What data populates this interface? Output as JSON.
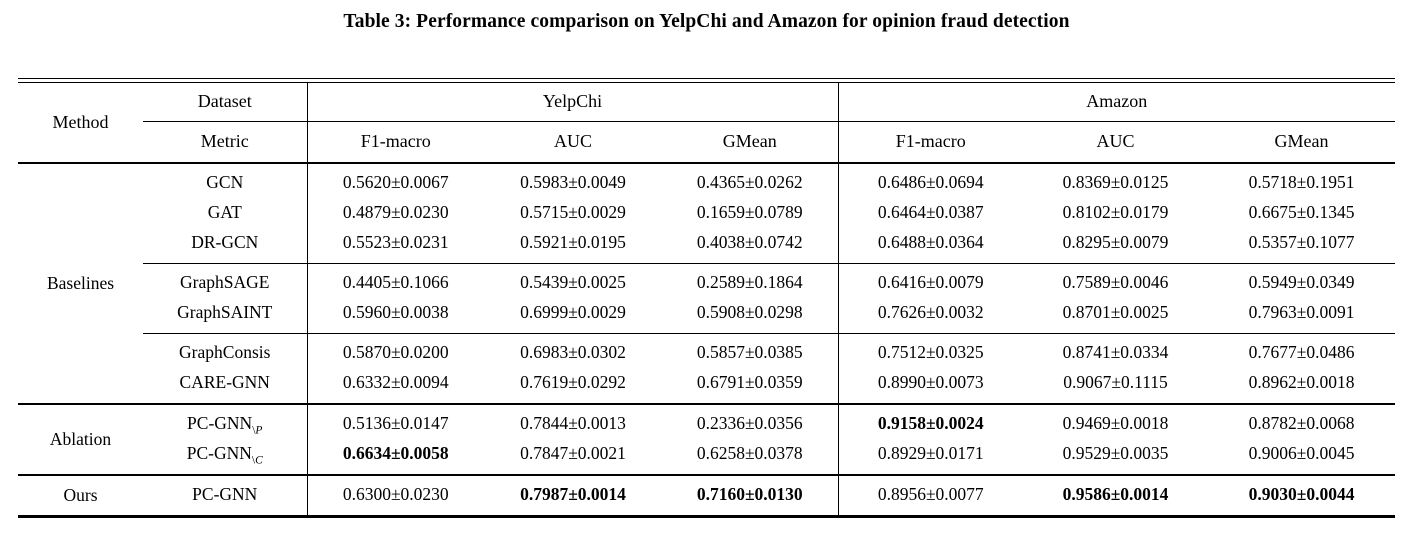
{
  "title": "Table 3: Performance comparison on YelpChi and Amazon for opinion fraud detection",
  "table": {
    "header": {
      "method": "Method",
      "dataset_label": "Dataset",
      "metric_label": "Metric",
      "datasets": [
        "YelpChi",
        "Amazon"
      ],
      "metrics": [
        "F1-macro",
        "AUC",
        "GMean"
      ]
    },
    "groups": [
      {
        "label": "Baselines",
        "blocks": [
          [
            {
              "method": "GCN",
              "sub": "",
              "values": [
                "0.5620±0.0067",
                "0.5983±0.0049",
                "0.4365±0.0262",
                "0.6486±0.0694",
                "0.8369±0.0125",
                "0.5718±0.1951"
              ],
              "bold": []
            },
            {
              "method": "GAT",
              "sub": "",
              "values": [
                "0.4879±0.0230",
                "0.5715±0.0029",
                "0.1659±0.0789",
                "0.6464±0.0387",
                "0.8102±0.0179",
                "0.6675±0.1345"
              ],
              "bold": []
            },
            {
              "method": "DR-GCN",
              "sub": "",
              "values": [
                "0.5523±0.0231",
                "0.5921±0.0195",
                "0.4038±0.0742",
                "0.6488±0.0364",
                "0.8295±0.0079",
                "0.5357±0.1077"
              ],
              "bold": []
            }
          ],
          [
            {
              "method": "GraphSAGE",
              "sub": "",
              "values": [
                "0.4405±0.1066",
                "0.5439±0.0025",
                "0.2589±0.1864",
                "0.6416±0.0079",
                "0.7589±0.0046",
                "0.5949±0.0349"
              ],
              "bold": []
            },
            {
              "method": "GraphSAINT",
              "sub": "",
              "values": [
                "0.5960±0.0038",
                "0.6999±0.0029",
                "0.5908±0.0298",
                "0.7626±0.0032",
                "0.8701±0.0025",
                "0.7963±0.0091"
              ],
              "bold": []
            }
          ],
          [
            {
              "method": "GraphConsis",
              "sub": "",
              "values": [
                "0.5870±0.0200",
                "0.6983±0.0302",
                "0.5857±0.0385",
                "0.7512±0.0325",
                "0.8741±0.0334",
                "0.7677±0.0486"
              ],
              "bold": []
            },
            {
              "method": "CARE-GNN",
              "sub": "",
              "values": [
                "0.6332±0.0094",
                "0.7619±0.0292",
                "0.6791±0.0359",
                "0.8990±0.0073",
                "0.9067±0.1115",
                "0.8962±0.0018"
              ],
              "bold": []
            }
          ]
        ]
      },
      {
        "label": "Ablation",
        "blocks": [
          [
            {
              "method": "PC-GNN",
              "sub": "\\P",
              "values": [
                "0.5136±0.0147",
                "0.7844±0.0013",
                "0.2336±0.0356",
                "0.9158±0.0024",
                "0.9469±0.0018",
                "0.8782±0.0068"
              ],
              "bold": [
                3
              ]
            },
            {
              "method": "PC-GNN",
              "sub": "\\C",
              "values": [
                "0.6634±0.0058",
                "0.7847±0.0021",
                "0.6258±0.0378",
                "0.8929±0.0171",
                "0.9529±0.0035",
                "0.9006±0.0045"
              ],
              "bold": [
                0
              ]
            }
          ]
        ]
      },
      {
        "label": "Ours",
        "blocks": [
          [
            {
              "method": "PC-GNN",
              "sub": "",
              "values": [
                "0.6300±0.0230",
                "0.7987±0.0014",
                "0.7160±0.0130",
                "0.8956±0.0077",
                "0.9586±0.0014",
                "0.9030±0.0044"
              ],
              "bold": [
                1,
                2,
                4,
                5
              ]
            }
          ]
        ]
      }
    ]
  }
}
